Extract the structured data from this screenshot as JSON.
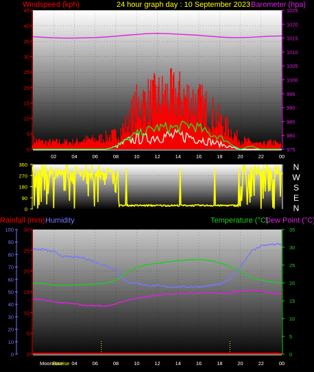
{
  "header": {
    "windspeed_label": "Windspeed (kph)",
    "title": "24 hour graph day : 10 September 2023",
    "barometer_label": "Barometer (hpa)"
  },
  "lower_header": {
    "rainfall_label": "Rainfall (mm)",
    "humidity_label": "Humidity",
    "temperature_label": "Temperature (°C)",
    "dewpoint_label": "Dew Point (°C)"
  },
  "bottom_labels": {
    "moonrise": "MoonRise",
    "sunrise": "Sunrise"
  },
  "colors": {
    "windspeed": "#ff0000",
    "gust": "#ff0000",
    "wind_avg": "#22dd22",
    "wind_low": "#ddeedd",
    "barometer": "#dd22dd",
    "direction": "#ffff00",
    "humidity": "#7777ff",
    "temperature": "#22cc22",
    "dewpoint": "#dd22dd",
    "rainfall": "#ff0000",
    "title": "#ffff00"
  },
  "chart_data": [
    {
      "type": "line",
      "x_tick_labels": [
        "02",
        "04",
        "06",
        "08",
        "10",
        "12",
        "14",
        "16",
        "18",
        "20",
        "22",
        "00"
      ],
      "x_range": [
        0,
        24
      ],
      "left_axis": {
        "ticks": [
          "0",
          "5",
          "10",
          "15",
          "20",
          "25",
          "30",
          "35",
          "40",
          "45"
        ],
        "range": [
          0,
          45
        ]
      },
      "right_axis": {
        "ticks": [
          "975",
          "980",
          "985",
          "990",
          "995",
          "1000",
          "1005",
          "1010",
          "1015",
          "1020",
          "1025"
        ],
        "range": [
          975,
          1025
        ]
      },
      "series": [
        {
          "axis": "right",
          "x": [
            0,
            1,
            2,
            3,
            4,
            5,
            6,
            7,
            8,
            9,
            10,
            11,
            12,
            13,
            14,
            15,
            16,
            17,
            18,
            19,
            20,
            21,
            22,
            23,
            24
          ],
          "values": [
            1015.5,
            1015.3,
            1015.1,
            1015.0,
            1015.0,
            1015.1,
            1015.2,
            1015.4,
            1015.7,
            1016.0,
            1016.3,
            1016.6,
            1016.7,
            1016.6,
            1016.4,
            1016.2,
            1016.0,
            1015.7,
            1015.4,
            1015.2,
            1015.2,
            1015.3,
            1015.5,
            1015.7,
            1015.8
          ]
        },
        {
          "axis": "left",
          "x": [
            0,
            1,
            2,
            3,
            4,
            5,
            6,
            7,
            8,
            9,
            10,
            11,
            12,
            13,
            14,
            15,
            16,
            17,
            18,
            19,
            20,
            21,
            22,
            23,
            24
          ],
          "values": [
            4,
            3,
            3,
            3,
            3,
            4,
            4,
            5,
            6,
            10,
            18,
            20,
            21,
            22,
            22,
            21,
            19,
            16,
            12,
            8,
            4,
            3,
            2,
            3,
            2
          ]
        },
        {
          "axis": "left",
          "x": [
            0,
            1,
            2,
            3,
            4,
            5,
            6,
            7,
            8,
            9,
            10,
            11,
            12,
            13,
            14,
            15,
            16,
            17,
            18,
            19,
            20,
            21,
            22,
            23,
            24
          ],
          "values": [
            0,
            0,
            0,
            0,
            0,
            0,
            0,
            0,
            1,
            3,
            5,
            6,
            7,
            7,
            7,
            8,
            7,
            5,
            4,
            2,
            0,
            1,
            0,
            0,
            0
          ]
        },
        {
          "axis": "left",
          "x": [
            0,
            1,
            2,
            3,
            4,
            5,
            6,
            7,
            8,
            9,
            10,
            11,
            12,
            13,
            14,
            15,
            16,
            17,
            18,
            19,
            20,
            21,
            22,
            23,
            24
          ],
          "values": [
            0,
            0,
            0,
            0,
            0,
            0,
            0,
            0,
            1,
            3,
            4,
            4,
            5,
            5,
            5,
            5,
            4,
            3,
            2,
            1,
            0,
            0,
            0,
            0,
            0
          ]
        }
      ]
    },
    {
      "type": "line",
      "x_range": [
        0,
        24
      ],
      "left_axis": {
        "ticks": [
          "0",
          "90",
          "180",
          "270",
          "360"
        ],
        "range": [
          0,
          360
        ]
      },
      "direction_labels": [
        "N",
        "W",
        "S",
        "E",
        "N"
      ],
      "series": [
        {
          "x": [
            0,
            0.5,
            1,
            1.5,
            2,
            2.5,
            3,
            3.5,
            4,
            4.5,
            5,
            5.5,
            6,
            6.5,
            7,
            7.5,
            8,
            8.5,
            9,
            10,
            11,
            12,
            13,
            14,
            15,
            16,
            17,
            17.5,
            18,
            18.5,
            19,
            19.5,
            20,
            20.5,
            21,
            21.5,
            22,
            22.5,
            23,
            23.5,
            24
          ],
          "values": [
            300,
            280,
            320,
            240,
            340,
            60,
            290,
            230,
            310,
            200,
            330,
            260,
            120,
            300,
            250,
            340,
            220,
            40,
            30,
            30,
            25,
            30,
            28,
            25,
            30,
            28,
            25,
            30,
            25,
            30,
            25,
            30,
            40,
            300,
            80,
            260,
            320,
            150,
            290,
            250,
            300
          ]
        }
      ]
    },
    {
      "type": "line",
      "x_tick_labels": [
        "02",
        "04",
        "06",
        "08",
        "10",
        "12",
        "14",
        "16",
        "18",
        "20",
        "22",
        "00"
      ],
      "x_range": [
        0,
        24
      ],
      "humidity_axis": {
        "ticks": [
          "0",
          "10",
          "20",
          "30",
          "40",
          "50",
          "60",
          "70",
          "80",
          "90",
          "100"
        ],
        "range": [
          0,
          100
        ]
      },
      "rainfall_axis": {
        "ticks": [
          "0",
          "5",
          "10",
          "15",
          "20",
          "25",
          "30"
        ],
        "range": [
          0,
          30
        ]
      },
      "temperature_axis": {
        "ticks": [
          "0",
          "5",
          "10",
          "15",
          "20",
          "25",
          "30",
          "35"
        ],
        "range": [
          0,
          35
        ]
      },
      "series": [
        {
          "axis": "humidity",
          "x": [
            0,
            1,
            2,
            3,
            4,
            5,
            6,
            7,
            8,
            8.5,
            9,
            10,
            11,
            12,
            13,
            14,
            15,
            16,
            17,
            18,
            18.5,
            19,
            20,
            21,
            22,
            23,
            24
          ],
          "values": [
            84,
            84,
            82,
            78,
            78,
            77,
            74,
            71,
            68,
            62,
            58,
            57,
            55,
            55,
            54,
            54,
            54,
            54,
            55,
            56,
            58,
            60,
            70,
            82,
            87,
            88,
            88
          ]
        },
        {
          "axis": "temperature",
          "x": [
            0,
            1,
            2,
            3,
            4,
            5,
            6,
            7,
            8,
            9,
            10,
            11,
            12,
            13,
            14,
            15,
            16,
            17,
            18,
            19,
            20,
            21,
            22,
            23,
            24
          ],
          "values": [
            20.0,
            19.8,
            19.4,
            19.3,
            19.4,
            19.5,
            19.6,
            19.9,
            20.7,
            22.8,
            24.3,
            25.1,
            25.5,
            25.9,
            26.2,
            26.5,
            26.6,
            26.3,
            25.6,
            24.7,
            23.2,
            21.6,
            20.8,
            20.3,
            20.0
          ]
        },
        {
          "axis": "temperature",
          "x": [
            0,
            1,
            2,
            3,
            4,
            5,
            6,
            7,
            8,
            9,
            10,
            11,
            12,
            13,
            14,
            15,
            16,
            17,
            18,
            19,
            20,
            21,
            22,
            23,
            24
          ],
          "values": [
            15.5,
            15.2,
            14.7,
            14.4,
            14.1,
            13.7,
            13.6,
            13.5,
            14.1,
            15.1,
            15.7,
            16.1,
            16.5,
            16.8,
            17.1,
            17.1,
            17.3,
            17.4,
            17.1,
            17.2,
            17.8,
            18.0,
            17.8,
            17.2,
            16.8
          ]
        },
        {
          "axis": "rainfall",
          "x": [
            0,
            24
          ],
          "values": [
            0,
            0
          ]
        }
      ],
      "markers_x": [
        6.6,
        19.0
      ]
    }
  ]
}
